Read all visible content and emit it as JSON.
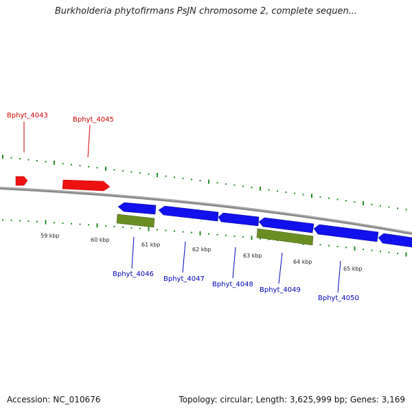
{
  "title": "Burkholderia phytofirmans PsJN chromosome 2, complete sequen...",
  "footer": {
    "accession": "Accession: NC_010676",
    "summary": "Topology: circular; Length: 3,625,999 bp; Genes: 3,169"
  },
  "colors": {
    "forward_gene": "#ee1111",
    "reverse_gene": "#1111ee",
    "rna_feature": "#6b8e23",
    "backbone": "#888888",
    "tick": "#228b22",
    "forward_label": "#cc0000",
    "reverse_label": "#0000bb"
  },
  "scale": {
    "ticks": [
      "59 kbp",
      "60 kbp",
      "61 kbp",
      "62 kbp",
      "63 kbp",
      "64 kbp",
      "65 kbp"
    ]
  },
  "genes": {
    "forward_labels": [
      "Bphyt_4043",
      "Bphyt_4045"
    ],
    "reverse_labels": [
      "Bphyt_4046",
      "Bphyt_4047",
      "Bphyt_4048",
      "Bphyt_4049",
      "Bphyt_4050"
    ]
  }
}
